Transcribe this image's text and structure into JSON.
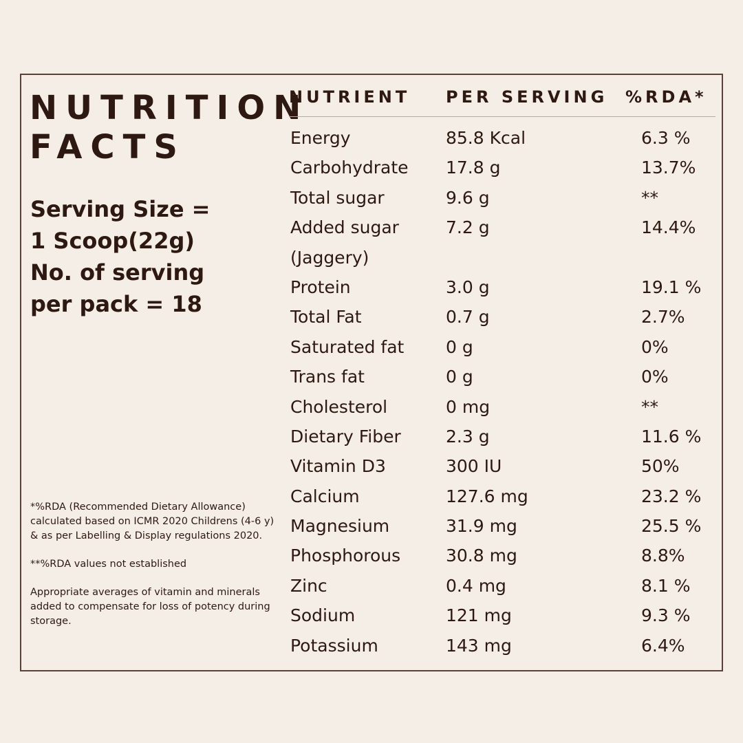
{
  "title_lines": [
    "NUTRITION",
    "FACTS"
  ],
  "serving_lines": [
    "Serving Size =",
    "1 Scoop(22g)",
    "No. of serving",
    "per pack = 18"
  ],
  "notes": [
    "*%RDA (Recommended Dietary Allowance) calculated based on ICMR 2020 Childrens (4-6 y) & as per Labelling & Display regulations 2020.",
    "**%RDA values not established",
    "Appropriate averages of vitamin and minerals added to compensate for loss of potency during storage."
  ],
  "table": {
    "headers": {
      "nutrient": "NUTRIENT",
      "per_serving": "PER SERVING",
      "rda": "%RDA*"
    },
    "rows": [
      {
        "nutrient": "Energy",
        "per_serving": "85.8 Kcal",
        "rda": "6.3 %"
      },
      {
        "nutrient": "Carbohydrate",
        "per_serving": "17.8 g",
        "rda": "13.7%"
      },
      {
        "nutrient": "Total sugar",
        "per_serving": "9.6 g",
        "rda": "**"
      },
      {
        "nutrient": "Added sugar (Jaggery)",
        "per_serving": "7.2 g",
        "rda": "14.4%"
      },
      {
        "nutrient": "Protein",
        "per_serving": "3.0 g",
        "rda": "19.1 %"
      },
      {
        "nutrient": "Total Fat",
        "per_serving": "0.7 g",
        "rda": "2.7%"
      },
      {
        "nutrient": "Saturated fat",
        "per_serving": "0 g",
        "rda": "0%"
      },
      {
        "nutrient": "Trans fat",
        "per_serving": "0 g",
        "rda": "0%"
      },
      {
        "nutrient": "Cholesterol",
        "per_serving": "0 mg",
        "rda": "**"
      },
      {
        "nutrient": "Dietary Fiber",
        "per_serving": "2.3 g",
        "rda": "11.6 %"
      },
      {
        "nutrient": "Vitamin D3",
        "per_serving": "300 IU",
        "rda": "50%"
      },
      {
        "nutrient": "Calcium",
        "per_serving": "127.6 mg",
        "rda": "23.2 %"
      },
      {
        "nutrient": "Magnesium",
        "per_serving": "31.9 mg",
        "rda": "25.5 %"
      },
      {
        "nutrient": "Phosphorous",
        "per_serving": "30.8 mg",
        "rda": "8.8%"
      },
      {
        "nutrient": "Zinc",
        "per_serving": "0.4 mg",
        "rda": "8.1 %"
      },
      {
        "nutrient": "Sodium",
        "per_serving": "121 mg",
        "rda": "9.3 %"
      },
      {
        "nutrient": "Potassium",
        "per_serving": "143 mg",
        "rda": "6.4%"
      }
    ]
  },
  "colors": {
    "background": "#f5eee7",
    "text": "#2e1812",
    "border": "#5a4038"
  }
}
